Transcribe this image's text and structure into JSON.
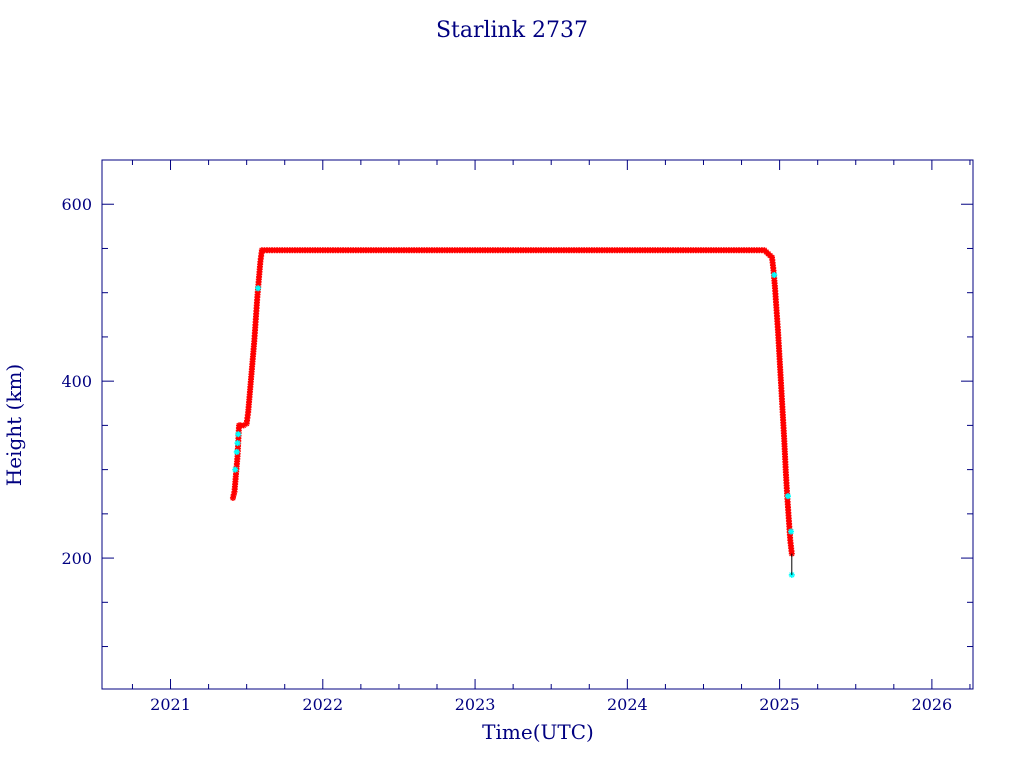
{
  "chart_data": {
    "type": "scatter",
    "title": "Starlink 2737",
    "xlabel": "Time(UTC)",
    "ylabel": "Height (km)",
    "xlim": [
      2020.55,
      2026.27
    ],
    "ylim": [
      52,
      650
    ],
    "x_ticks": [
      2021,
      2022,
      2023,
      2024,
      2025,
      2026
    ],
    "x_tick_labels": [
      "2021",
      "2022",
      "2023",
      "2024",
      "2025",
      "2026"
    ],
    "y_ticks": [
      200,
      400,
      600
    ],
    "y_tick_labels": [
      "200",
      "400",
      "600"
    ],
    "grid": false,
    "series": [
      {
        "color": "#ff0000",
        "marker": "star",
        "x": [
          2021.41,
          2021.42,
          2021.43,
          2021.44,
          2021.45,
          2021.46,
          2021.48,
          2021.5,
          2021.51,
          2021.52,
          2021.53,
          2021.54,
          2021.55,
          2021.56,
          2021.57,
          2021.58,
          2021.59,
          2021.6,
          2021.7,
          2021.9,
          2022.1,
          2022.3,
          2022.5,
          2022.7,
          2022.9,
          2023.1,
          2023.3,
          2023.5,
          2023.7,
          2023.9,
          2024.1,
          2024.3,
          2024.5,
          2024.7,
          2024.9,
          2024.95,
          2024.96,
          2024.97,
          2024.98,
          2024.99,
          2025.0,
          2025.01,
          2025.02,
          2025.03,
          2025.04,
          2025.05,
          2025.06,
          2025.07,
          2025.08
        ],
        "y": [
          268,
          275,
          295,
          315,
          350,
          350,
          350,
          352,
          365,
          385,
          405,
          425,
          445,
          470,
          495,
          515,
          535,
          548,
          548,
          548,
          548,
          548,
          548,
          548,
          548,
          548,
          548,
          548,
          548,
          548,
          548,
          548,
          548,
          548,
          548,
          540,
          525,
          505,
          480,
          455,
          425,
          395,
          365,
          335,
          300,
          270,
          245,
          220,
          205
        ]
      },
      {
        "color": "#00ffff",
        "marker": "star",
        "x": [
          2021.425,
          2021.435,
          2021.44,
          2021.445,
          2021.575,
          2024.965,
          2025.055,
          2025.075,
          2025.08
        ],
        "y": [
          300,
          320,
          330,
          340,
          505,
          520,
          270,
          230,
          181
        ]
      },
      {
        "color": "#000000",
        "marker": "line",
        "x": [
          2025.08,
          2025.08
        ],
        "y": [
          205,
          181
        ]
      }
    ]
  }
}
